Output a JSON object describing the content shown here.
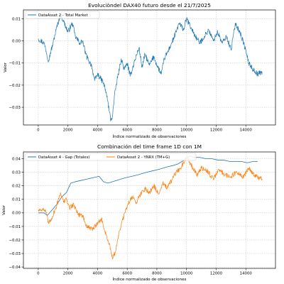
{
  "chart_data": [
    {
      "type": "line",
      "title": "Evoluciòndel DAX40 futuro desde el 21/7/2025",
      "xlabel": "Índice normalizado de observaciones",
      "ylabel": "Valor",
      "xlim": [
        -1000,
        16000
      ],
      "ylim": [
        -0.038,
        0.014
      ],
      "xticks": [
        0,
        2000,
        4000,
        6000,
        8000,
        10000,
        12000,
        14000
      ],
      "xtick_labels": [
        "0",
        "2000",
        "4000",
        "6000",
        "8000",
        "10000",
        "12000",
        "14000"
      ],
      "yticks": [
        0.01,
        0.0,
        -0.01,
        -0.02,
        -0.03
      ],
      "ytick_labels": [
        "0.01",
        "0.00",
        "−0.01",
        "−0.02",
        "−0.03"
      ],
      "grid": true,
      "legend_position": "top-left",
      "series": [
        {
          "name": "DataAsset 2 - Total Market",
          "color": "#1f77b4",
          "noise": 0.0012,
          "x": [
            0,
            400,
            700,
            800,
            1000,
            1200,
            1500,
            1700,
            2000,
            2300,
            2500,
            2800,
            3000,
            3200,
            3400,
            3600,
            3800,
            4000,
            4200,
            4400,
            4600,
            4800,
            4900,
            5000,
            5200,
            5400,
            5600,
            5800,
            6000,
            6200,
            6500,
            6800,
            7000,
            7200,
            7500,
            7800,
            8000,
            8300,
            8500,
            8800,
            9000,
            9300,
            9500,
            9800,
            10000,
            10300,
            10600,
            10900,
            11200,
            11500,
            11800,
            12100,
            12400,
            12700,
            13000,
            13300,
            13600,
            13900,
            14200,
            14500,
            14800,
            15100
          ],
          "y": [
            0.001,
            -0.001,
            -0.009,
            -0.006,
            -0.001,
            0.005,
            0.012,
            0.009,
            0.004,
            0.008,
            0.002,
            -0.001,
            0.0,
            -0.006,
            -0.009,
            -0.011,
            -0.018,
            -0.015,
            -0.017,
            -0.019,
            -0.024,
            -0.032,
            -0.036,
            -0.034,
            -0.022,
            -0.015,
            -0.008,
            -0.013,
            -0.01,
            -0.016,
            -0.009,
            -0.003,
            -0.012,
            -0.006,
            -0.011,
            -0.007,
            -0.011,
            -0.015,
            -0.008,
            -0.004,
            -0.001,
            0.004,
            0.008,
            0.005,
            0.01,
            0.006,
            0.002,
            -0.001,
            0.002,
            0.005,
            0.0,
            0.004,
            -0.001,
            0.002,
            -0.004,
            0.008,
            0.004,
            -0.002,
            -0.01,
            -0.013,
            -0.015,
            -0.014
          ]
        }
      ]
    },
    {
      "type": "line",
      "title": "Combinación del time frame 1D con 1M",
      "xlabel": "Índice normalizado de observaciones",
      "ylabel": "Valor",
      "xlim": [
        -1000,
        16000
      ],
      "ylim": [
        -0.041,
        0.045
      ],
      "xticks": [
        0,
        2000,
        4000,
        6000,
        8000,
        10000,
        12000,
        14000
      ],
      "xtick_labels": [
        "0",
        "2000",
        "4000",
        "6000",
        "8000",
        "10000",
        "12000",
        "14000"
      ],
      "yticks": [
        0.04,
        0.03,
        0.02,
        0.01,
        0.0,
        -0.01,
        -0.02,
        -0.03,
        -0.04
      ],
      "ytick_labels": [
        "0.04",
        "0.03",
        "0.02",
        "0.01",
        "0.00",
        "−0.01",
        "−0.02",
        "−0.03",
        "−0.04"
      ],
      "grid": true,
      "legend_position": "top",
      "series": [
        {
          "name": "DataAsset 4 - Gap (Totales)",
          "color": "#1f77b4",
          "noise": 0,
          "x": [
            0,
            400,
            600,
            1000,
            1300,
            1600,
            1900,
            2200,
            2500,
            2900,
            3300,
            3700,
            4100,
            4400,
            4700,
            5000,
            5300,
            5600,
            5900,
            6300,
            6700,
            7000,
            7300,
            7700,
            8100,
            8400,
            8700,
            9100,
            9400,
            9700,
            10000,
            10200,
            10500,
            10900,
            11300,
            11700,
            12100,
            12500,
            12900,
            13300,
            13700,
            14100,
            14500,
            14800
          ],
          "y": [
            0.0,
            0.0,
            -0.002,
            0.003,
            0.007,
            0.012,
            0.015,
            0.022,
            0.023,
            0.024,
            0.025,
            0.026,
            0.027,
            0.023,
            0.022,
            0.023,
            0.024,
            0.025,
            0.026,
            0.027,
            0.028,
            0.029,
            0.03,
            0.031,
            0.032,
            0.033,
            0.034,
            0.035,
            0.036,
            0.038,
            0.04,
            0.042,
            0.041,
            0.041,
            0.04,
            0.04,
            0.039,
            0.039,
            0.038,
            0.038,
            0.038,
            0.037,
            0.038,
            0.038
          ]
        },
        {
          "name": "DataAsset 2 - YNRX (TM+G)",
          "color": "#ff7f0e",
          "noise": 0.0018,
          "x": [
            0,
            300,
            500,
            700,
            900,
            1200,
            1500,
            1700,
            1900,
            2100,
            2400,
            2700,
            3000,
            3200,
            3400,
            3700,
            4000,
            4300,
            4500,
            4700,
            4900,
            5000,
            5200,
            5400,
            5700,
            6000,
            6300,
            6600,
            6900,
            7200,
            7500,
            7800,
            8100,
            8400,
            8700,
            9000,
            9300,
            9600,
            9800,
            10000,
            10300,
            10700,
            11000,
            11400,
            11800,
            12200,
            12600,
            13000,
            13400,
            13800,
            14200,
            14500,
            14800,
            15100
          ],
          "y": [
            0.002,
            0.003,
            0.001,
            -0.008,
            -0.004,
            0.004,
            0.015,
            0.008,
            0.01,
            0.004,
            0.006,
            -0.001,
            -0.002,
            -0.009,
            -0.011,
            -0.012,
            -0.007,
            -0.005,
            -0.014,
            -0.02,
            -0.028,
            -0.034,
            -0.029,
            -0.017,
            -0.005,
            0.005,
            0.012,
            0.008,
            0.014,
            0.018,
            0.015,
            0.02,
            0.014,
            0.022,
            0.018,
            0.024,
            0.03,
            0.033,
            0.037,
            0.042,
            0.036,
            0.028,
            0.033,
            0.031,
            0.025,
            0.032,
            0.028,
            0.027,
            0.03,
            0.026,
            0.033,
            0.029,
            0.026,
            0.025
          ]
        }
      ]
    }
  ]
}
